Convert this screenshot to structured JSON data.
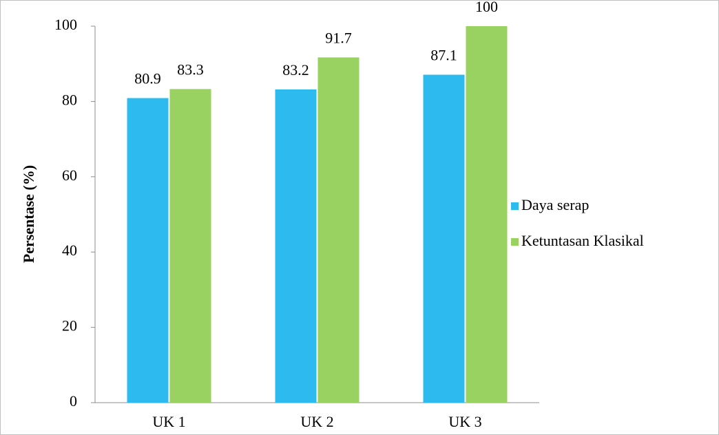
{
  "chart_data": {
    "type": "bar",
    "y_label": "Persentase (%)",
    "categories": [
      "UK 1",
      "UK 2",
      "UK 3"
    ],
    "series": [
      {
        "name": "Daya serap",
        "color": "#2dbbef",
        "values": [
          80.9,
          83.2,
          87.1
        ]
      },
      {
        "name": "Ketuntasan Klasikal",
        "color": "#9ad262",
        "values": [
          83.3,
          91.7,
          100
        ]
      }
    ],
    "ylim": [
      0,
      100
    ],
    "yticks": [
      0,
      20,
      40,
      60,
      80,
      100
    ],
    "grid": false,
    "legend": "right"
  }
}
